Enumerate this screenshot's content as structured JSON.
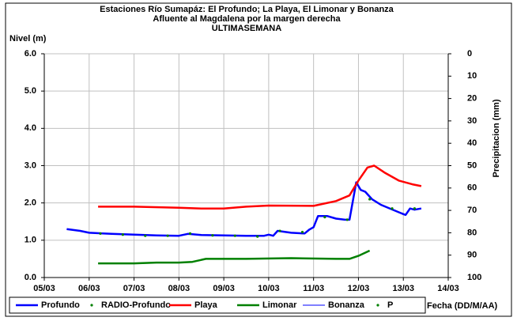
{
  "chart_data": {
    "type": "line",
    "title": [
      "Estaciones Río Sumapáz: El Profundo; La Playa, El Limonar y Bonanza",
      "Afluente al Magdalena por la margen derecha",
      "ULTIMASEMANA"
    ],
    "ylabel": "Nivel (m)",
    "y2label": "Precipitacion (mm)",
    "xlabel": "Fecha (DD/M/AA)",
    "xlim": [
      5,
      14
    ],
    "xticks": [
      {
        "value": 5,
        "label": "05/03"
      },
      {
        "value": 6,
        "label": "06/03"
      },
      {
        "value": 7,
        "label": "07/03"
      },
      {
        "value": 8,
        "label": "08/03"
      },
      {
        "value": 9,
        "label": "09/03"
      },
      {
        "value": 10,
        "label": "10/03"
      },
      {
        "value": 11,
        "label": "11/03"
      },
      {
        "value": 12,
        "label": "12/03"
      },
      {
        "value": 13,
        "label": "13/03"
      },
      {
        "value": 14,
        "label": "14/03"
      }
    ],
    "ylim": [
      0,
      6
    ],
    "yticks": [
      {
        "value": 0,
        "label": "0.0"
      },
      {
        "value": 1,
        "label": "1.0"
      },
      {
        "value": 2,
        "label": "2.0"
      },
      {
        "value": 3,
        "label": "3.0"
      },
      {
        "value": 4,
        "label": "4.0"
      },
      {
        "value": 5,
        "label": "5.0"
      },
      {
        "value": 6,
        "label": "6.0"
      }
    ],
    "y2lim": [
      0,
      100
    ],
    "y2inverted": true,
    "y2ticks": [
      0,
      10,
      20,
      30,
      40,
      50,
      60,
      70,
      80,
      90,
      100
    ],
    "grid": true,
    "legend": "bottom",
    "series": [
      {
        "name": "Profundo",
        "color": "#0000ff",
        "mode": "lines",
        "width": 2.5,
        "x": [
          5.5,
          5.8,
          6.0,
          6.5,
          7.0,
          7.5,
          8.0,
          8.2,
          8.5,
          9.0,
          9.5,
          9.9,
          10.0,
          10.1,
          10.2,
          10.5,
          10.8,
          10.9,
          11.0,
          11.1,
          11.3,
          11.5,
          11.7,
          11.8,
          11.95,
          12.05,
          12.15,
          12.3,
          12.5,
          12.8,
          13.0,
          13.05,
          13.15,
          13.25,
          13.4
        ],
        "values": [
          1.3,
          1.25,
          1.2,
          1.17,
          1.15,
          1.13,
          1.12,
          1.17,
          1.14,
          1.13,
          1.12,
          1.12,
          1.15,
          1.12,
          1.25,
          1.2,
          1.18,
          1.28,
          1.35,
          1.65,
          1.65,
          1.58,
          1.55,
          1.55,
          2.55,
          2.35,
          2.3,
          2.1,
          1.95,
          1.8,
          1.7,
          1.68,
          1.85,
          1.82,
          1.85
        ]
      },
      {
        "name": "RADIO-Profundo",
        "color": "#008000",
        "mode": "markers",
        "x": [
          6.25,
          6.75,
          7.25,
          7.75,
          8.25,
          8.75,
          9.25,
          9.75,
          10.25,
          10.75,
          11.25,
          11.75,
          12.25,
          12.75,
          13.25
        ],
        "values": [
          1.18,
          1.15,
          1.12,
          1.12,
          1.18,
          1.13,
          1.12,
          1.1,
          1.25,
          1.22,
          1.62,
          1.55,
          2.1,
          1.85,
          1.85
        ]
      },
      {
        "name": "Playa",
        "color": "#ff0000",
        "mode": "lines",
        "width": 2.5,
        "x": [
          6.2,
          7.0,
          8.0,
          8.5,
          9.0,
          9.5,
          10.0,
          11.0,
          11.5,
          11.8,
          12.0,
          12.2,
          12.35,
          12.6,
          12.9,
          13.2,
          13.4
        ],
        "values": [
          1.9,
          1.9,
          1.87,
          1.85,
          1.85,
          1.9,
          1.93,
          1.92,
          2.05,
          2.2,
          2.6,
          2.95,
          3.0,
          2.8,
          2.6,
          2.5,
          2.45
        ]
      },
      {
        "name": "Limonar",
        "color": "#008000",
        "mode": "lines",
        "width": 2.5,
        "x": [
          6.2,
          7.0,
          7.5,
          8.0,
          8.3,
          8.6,
          9.5,
          10.5,
          11.5,
          11.8,
          12.0,
          12.25
        ],
        "values": [
          0.38,
          0.38,
          0.4,
          0.4,
          0.42,
          0.5,
          0.5,
          0.52,
          0.5,
          0.5,
          0.58,
          0.72
        ]
      },
      {
        "name": "Bonanza",
        "color": "#0000ff",
        "mode": "lines",
        "width": 1,
        "x": [],
        "values": []
      },
      {
        "name": "P",
        "color": "#008000",
        "mode": "markers",
        "axis": "y2",
        "x": [],
        "values": []
      }
    ]
  }
}
